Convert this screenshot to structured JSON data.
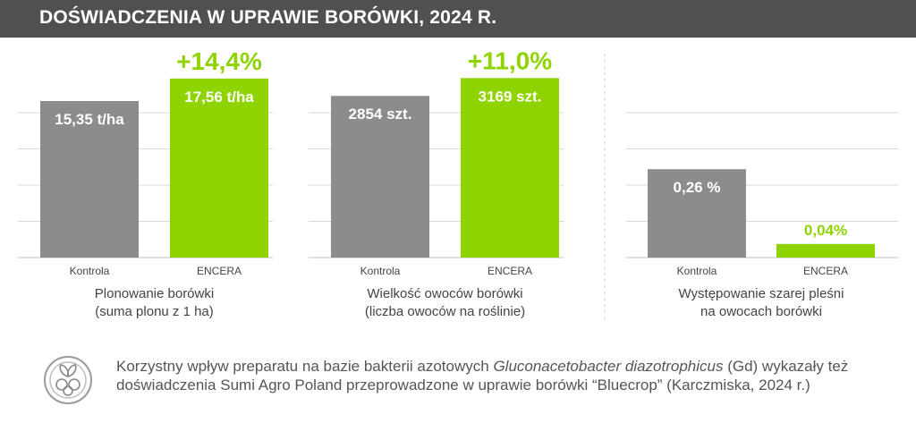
{
  "header": {
    "title": "DOŚWIADCZENIA W UPRAWIE BORÓWKI, 2024 R."
  },
  "colors": {
    "control": "#8c8c8c",
    "encera": "#8fd400",
    "header_bg": "#505050",
    "grid": "#d9d9d9",
    "divider": "#cfcfcf"
  },
  "chart_data": [
    {
      "type": "bar",
      "categories": [
        "Kontrola",
        "ENCERA"
      ],
      "values": [
        15.35,
        17.56
      ],
      "value_labels": [
        "15,35 t/ha",
        "17,56 t/ha"
      ],
      "delta_label": "+14,4%",
      "title_lines": [
        "Plonowanie borówki",
        "(suma plonu z 1 ha)"
      ],
      "ylim": [
        0,
        20
      ],
      "grid": true
    },
    {
      "type": "bar",
      "categories": [
        "Kontrola",
        "ENCERA"
      ],
      "values": [
        2854,
        3169
      ],
      "value_labels": [
        "2854 szt.",
        "3169 szt."
      ],
      "delta_label": "+11,0%",
      "title_lines": [
        "Wielkość owoców borówki",
        "(liczba owoców na roślinie)"
      ],
      "ylim": [
        0,
        3600
      ],
      "grid": true
    },
    {
      "type": "bar",
      "categories": [
        "Kontrola",
        "ENCERA"
      ],
      "values": [
        0.26,
        0.04
      ],
      "value_labels": [
        "0,26 %",
        "0,04%"
      ],
      "delta_label": "",
      "title_lines": [
        "Występowanie szarej pleśni",
        "na owocach borówki"
      ],
      "ylim": [
        0,
        0.6
      ],
      "grid": true
    }
  ],
  "footer": {
    "icon": "blueberry-leaf-icon",
    "text_before": "Korzystny wpływ preparatu na bazie bakterii azotowych ",
    "text_italic": "Gluconacetobacter diazotrophicus",
    "text_after": " (Gd) wykazały też doświadczenia Sumi Agro Poland przeprowadzone w uprawie borówki “Bluecrop” (Karczmiska, 2024 r.)"
  }
}
